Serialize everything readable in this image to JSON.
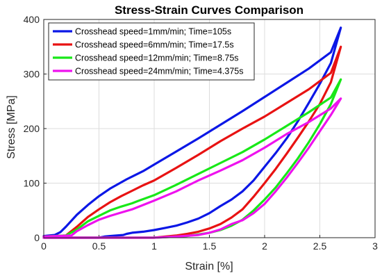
{
  "chart_data": {
    "type": "line",
    "title": "Stress-Strain Curves Comparison",
    "xlabel": "Strain [%]",
    "ylabel": "Stress [MPa]",
    "xlim": [
      0,
      3
    ],
    "ylim": [
      0,
      400
    ],
    "xticks": [
      0,
      0.5,
      1,
      1.5,
      2,
      2.5,
      3
    ],
    "xtick_labels": [
      "0",
      "0.5",
      "1",
      "1.5",
      "2",
      "2.5",
      "3"
    ],
    "yticks": [
      0,
      100,
      200,
      300,
      400
    ],
    "ytick_labels": [
      "0",
      "100",
      "200",
      "300",
      "400"
    ],
    "grid": true,
    "legend_position": "top-left",
    "series": [
      {
        "name": "Crosshead speed=1mm/min; Time=105s",
        "color": "#0b17e6",
        "x": [
          0,
          0.1,
          0.15,
          0.2,
          0.3,
          0.4,
          0.5,
          0.6,
          0.75,
          0.9,
          1.0,
          1.2,
          1.4,
          1.6,
          1.8,
          2.0,
          2.2,
          2.4,
          2.6,
          2.69,
          2.69,
          2.6,
          2.5,
          2.4,
          2.3,
          2.2,
          2.1,
          2.0,
          1.9,
          1.8,
          1.7,
          1.6,
          1.5,
          1.4,
          1.3,
          1.2,
          1.1,
          1.0,
          0.9,
          0.8,
          0.75,
          0.72,
          0.6,
          0.55,
          0.5,
          0.3,
          0.1,
          0
        ],
        "y": [
          3,
          5,
          10,
          20,
          42,
          60,
          76,
          90,
          107,
          122,
          134,
          158,
          182,
          207,
          232,
          258,
          284,
          310,
          340,
          385,
          385,
          320,
          282,
          247,
          213,
          182,
          155,
          130,
          105,
          85,
          70,
          58,
          45,
          35,
          28,
          22,
          18,
          14,
          11,
          9,
          7,
          5,
          3,
          2,
          0,
          0,
          0,
          0
        ]
      },
      {
        "name": "Crosshead speed=6mm/min; Time=17.5s",
        "color": "#e81212",
        "x": [
          0,
          0.2,
          0.3,
          0.4,
          0.5,
          0.6,
          0.7,
          0.8,
          0.9,
          1.0,
          1.2,
          1.4,
          1.6,
          1.8,
          2.0,
          2.2,
          2.4,
          2.6,
          2.69,
          2.69,
          2.6,
          2.5,
          2.4,
          2.3,
          2.2,
          2.1,
          2.0,
          1.9,
          1.8,
          1.7,
          1.6,
          1.5,
          1.4,
          1.3,
          1.2,
          1.1,
          1.0,
          0.5,
          0
        ],
        "y": [
          2,
          4,
          20,
          38,
          52,
          65,
          76,
          86,
          96,
          105,
          128,
          152,
          177,
          200,
          222,
          247,
          272,
          302,
          350,
          350,
          285,
          245,
          213,
          183,
          154,
          126,
          100,
          75,
          52,
          37,
          25,
          17,
          11,
          7,
          4,
          2,
          0,
          0,
          0
        ]
      },
      {
        "name": "Crosshead speed=12mm/min; Time=8.75s",
        "color": "#18e818",
        "x": [
          0,
          0.2,
          0.3,
          0.4,
          0.5,
          0.6,
          0.7,
          0.8,
          0.85,
          1.0,
          1.2,
          1.4,
          1.6,
          1.8,
          2.0,
          2.2,
          2.4,
          2.6,
          2.69,
          2.69,
          2.6,
          2.5,
          2.4,
          2.3,
          2.2,
          2.1,
          2.0,
          1.9,
          1.8,
          1.7,
          1.6,
          1.5,
          1.4,
          1.3,
          1.2,
          1.0,
          0.5,
          0
        ],
        "y": [
          2,
          4,
          15,
          30,
          40,
          50,
          57,
          63,
          67,
          78,
          97,
          117,
          137,
          157,
          180,
          205,
          230,
          257,
          290,
          290,
          245,
          208,
          175,
          145,
          118,
          92,
          70,
          50,
          33,
          22,
          14,
          9,
          6,
          3,
          2,
          0,
          0,
          0
        ]
      },
      {
        "name": "Crosshead speed=24mm/min; Time=4.375s",
        "color": "#ee12ee",
        "x": [
          0,
          0.25,
          0.3,
          0.4,
          0.5,
          0.6,
          0.7,
          0.8,
          1.0,
          1.2,
          1.35,
          1.4,
          1.6,
          1.8,
          2.0,
          2.2,
          2.4,
          2.6,
          2.69,
          2.69,
          2.6,
          2.5,
          2.4,
          2.3,
          2.2,
          2.1,
          2.0,
          1.9,
          1.8,
          1.7,
          1.6,
          1.5,
          1.4,
          1.2,
          1.0,
          0.5,
          0
        ],
        "y": [
          2,
          4,
          12,
          23,
          33,
          40,
          46,
          52,
          68,
          85,
          100,
          105,
          123,
          142,
          165,
          190,
          212,
          237,
          255,
          255,
          225,
          195,
          165,
          137,
          110,
          85,
          62,
          45,
          32,
          25,
          15,
          9,
          5,
          2,
          0,
          0,
          0
        ]
      }
    ]
  }
}
